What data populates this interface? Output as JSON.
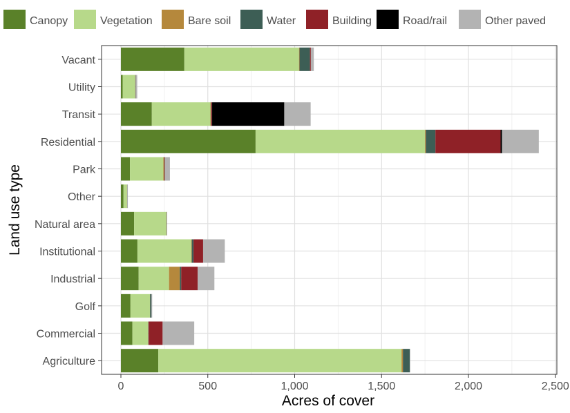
{
  "chart_data": {
    "type": "bar",
    "orientation": "horizontal",
    "stacked": true,
    "xlabel": "Acres of cover",
    "ylabel": "Land use type",
    "xlim": [
      0,
      2500
    ],
    "xticks": [
      0,
      500,
      1000,
      1500,
      2000,
      2500
    ],
    "xtick_labels": [
      "0",
      "500",
      "1,000",
      "1,500",
      "2,000",
      "2,500"
    ],
    "grid": true,
    "legend_position": "top",
    "categories": [
      "Vacant",
      "Utility",
      "Transit",
      "Residential",
      "Park",
      "Other",
      "Natural area",
      "Institutional",
      "Industrial",
      "Golf",
      "Commercial",
      "Agriculture"
    ],
    "series": [
      {
        "name": "Canopy",
        "color": "#5a8129",
        "values": [
          365,
          10,
          178,
          775,
          52,
          15,
          76,
          95,
          102,
          55,
          66,
          215
        ]
      },
      {
        "name": "Vegetation",
        "color": "#b7d98a",
        "values": [
          660,
          72,
          337,
          975,
          192,
          20,
          185,
          310,
          175,
          112,
          90,
          1400
        ]
      },
      {
        "name": "Bare soil",
        "color": "#b5883c",
        "values": [
          3,
          1,
          3,
          5,
          5,
          1,
          2,
          3,
          62,
          1,
          2,
          8
        ]
      },
      {
        "name": "Water",
        "color": "#3d5e55",
        "values": [
          60,
          2,
          2,
          55,
          2,
          1,
          2,
          10,
          8,
          8,
          2,
          40
        ]
      },
      {
        "name": "Building",
        "color": "#8f2127",
        "values": [
          5,
          1,
          5,
          375,
          3,
          0,
          0,
          55,
          95,
          0,
          80,
          0
        ]
      },
      {
        "name": "Road/rail",
        "color": "#000000",
        "values": [
          0,
          0,
          415,
          8,
          0,
          0,
          0,
          0,
          0,
          0,
          0,
          0
        ]
      },
      {
        "name": "Other paved",
        "color": "#b3b3b3",
        "values": [
          17,
          8,
          152,
          212,
          28,
          3,
          0,
          125,
          96,
          4,
          182,
          2
        ]
      }
    ]
  }
}
